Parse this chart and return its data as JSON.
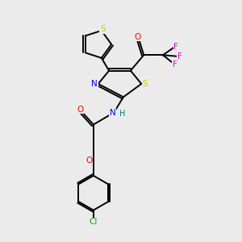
{
  "bg_color": "#ebebeb",
  "bond_color": "#000000",
  "atom_colors": {
    "S": "#cccc00",
    "N": "#0000ff",
    "O": "#ff0000",
    "F": "#ff00cc",
    "Cl": "#00aa00",
    "H": "#008080"
  },
  "lw": 1.4,
  "fs": 7.5
}
